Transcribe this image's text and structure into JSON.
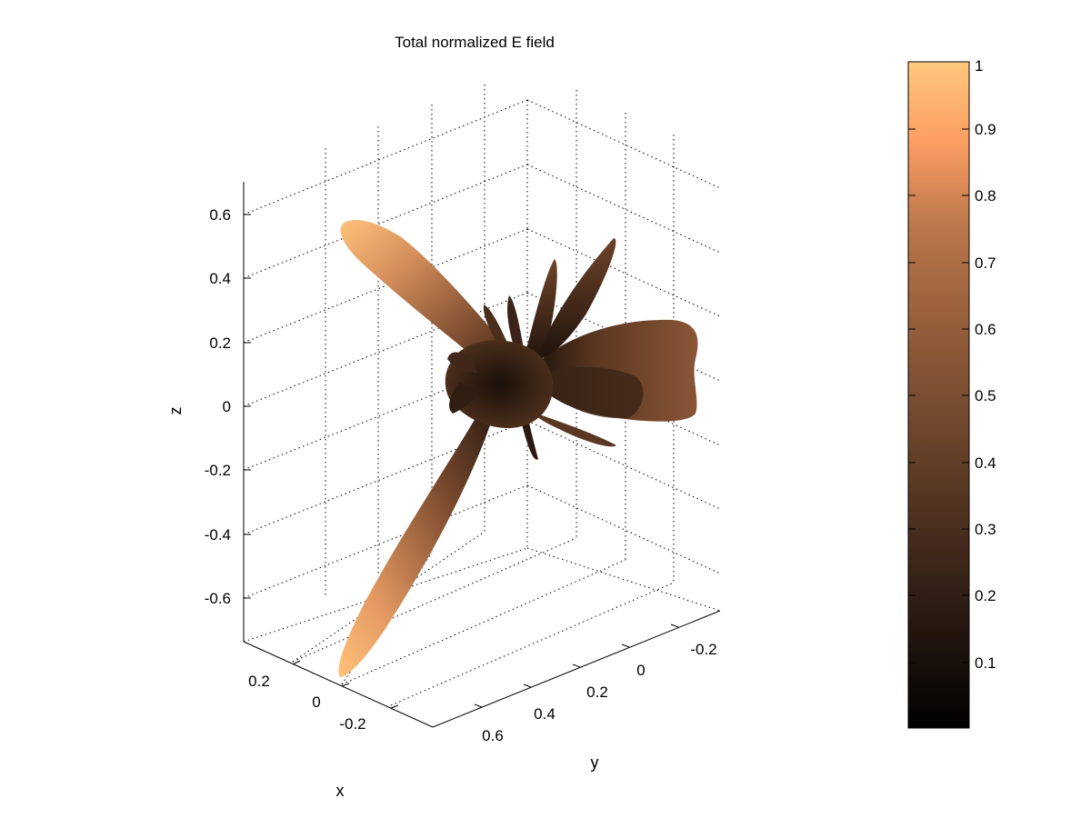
{
  "chart_data": {
    "type": "surface",
    "title": "Total normalized E field",
    "xlabel": "x",
    "ylabel": "y",
    "zlabel": "z",
    "grid": true,
    "x_ticks": [
      "0.2",
      "0",
      "-0.2"
    ],
    "y_ticks": [
      "0.6",
      "0.4",
      "0.2",
      "0",
      "-0.2"
    ],
    "z_ticks": [
      "0.6",
      "0.4",
      "0.2",
      "0",
      "-0.2",
      "-0.4",
      "-0.6"
    ],
    "colorbar": {
      "ticks": [
        "1",
        "0.9",
        "0.8",
        "0.7",
        "0.6",
        "0.5",
        "0.4",
        "0.3",
        "0.2",
        "0.1"
      ],
      "range": [
        0,
        1
      ],
      "colormap": "copper"
    },
    "lobes": [
      {
        "name": "main-lobe-upper",
        "peak_value": 1.0
      },
      {
        "name": "main-lobe-lower",
        "peak_value": 1.0
      },
      {
        "name": "side-lobe-right",
        "peak_value": 0.55
      },
      {
        "name": "minor-lobes",
        "peak_value": 0.35
      }
    ]
  }
}
